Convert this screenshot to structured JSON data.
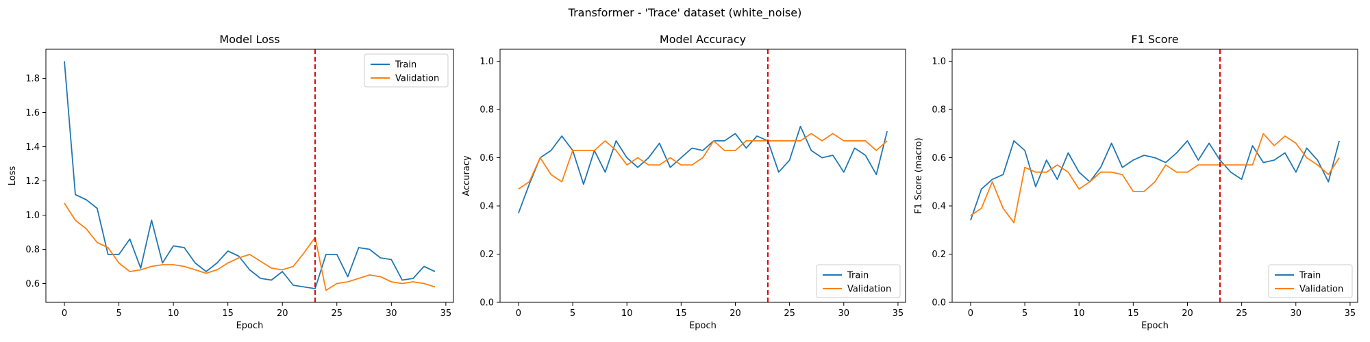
{
  "figure": {
    "title": "Transformer - 'Trace' dataset (white_noise)"
  },
  "colors": {
    "train": "#1f77b4",
    "validation": "#ff7f0e",
    "marker_line": "#e00000"
  },
  "chart_data": [
    {
      "type": "line",
      "title": "Model Loss",
      "xlabel": "Epoch",
      "ylabel": "Loss",
      "xlim": [
        -1.7,
        35.7
      ],
      "ylim": [
        0.49,
        1.97
      ],
      "xticks": [
        0,
        5,
        10,
        15,
        20,
        25,
        30,
        35
      ],
      "yticks": [
        0.6,
        0.8,
        1.0,
        1.2,
        1.4,
        1.6,
        1.8
      ],
      "ytick_decimals": 1,
      "legend": "upper right",
      "vline_x": 23,
      "x": [
        0,
        1,
        2,
        3,
        4,
        5,
        6,
        7,
        8,
        9,
        10,
        11,
        12,
        13,
        14,
        15,
        16,
        17,
        18,
        19,
        20,
        21,
        22,
        23,
        24,
        25,
        26,
        27,
        28,
        29,
        30,
        31,
        32,
        33,
        34
      ],
      "series": [
        {
          "name": "Train",
          "values": [
            1.9,
            1.12,
            1.09,
            1.04,
            0.77,
            0.77,
            0.86,
            0.69,
            0.97,
            0.72,
            0.82,
            0.81,
            0.72,
            0.67,
            0.72,
            0.79,
            0.76,
            0.68,
            0.63,
            0.62,
            0.67,
            0.59,
            0.58,
            0.57,
            0.77,
            0.77,
            0.64,
            0.81,
            0.8,
            0.75,
            0.74,
            0.62,
            0.63,
            0.7,
            0.67
          ]
        },
        {
          "name": "Validation",
          "values": [
            1.07,
            0.97,
            0.92,
            0.84,
            0.81,
            0.72,
            0.67,
            0.68,
            0.7,
            0.71,
            0.71,
            0.7,
            0.68,
            0.66,
            0.68,
            0.72,
            0.75,
            0.77,
            0.73,
            0.69,
            0.68,
            0.7,
            0.78,
            0.87,
            0.56,
            0.6,
            0.61,
            0.63,
            0.65,
            0.64,
            0.61,
            0.6,
            0.61,
            0.6,
            0.58
          ]
        }
      ]
    },
    {
      "type": "line",
      "title": "Model Accuracy",
      "xlabel": "Epoch",
      "ylabel": "Accuracy",
      "xlim": [
        -1.7,
        35.7
      ],
      "ylim": [
        0,
        1.05
      ],
      "xticks": [
        0,
        5,
        10,
        15,
        20,
        25,
        30,
        35
      ],
      "yticks": [
        0.0,
        0.2,
        0.4,
        0.6,
        0.8,
        1.0
      ],
      "ytick_decimals": 1,
      "legend": "lower right",
      "vline_x": 23,
      "x": [
        0,
        1,
        2,
        3,
        4,
        5,
        6,
        7,
        8,
        9,
        10,
        11,
        12,
        13,
        14,
        15,
        16,
        17,
        18,
        19,
        20,
        21,
        22,
        23,
        24,
        25,
        26,
        27,
        28,
        29,
        30,
        31,
        32,
        33,
        34
      ],
      "series": [
        {
          "name": "Train",
          "values": [
            0.37,
            0.49,
            0.6,
            0.63,
            0.69,
            0.63,
            0.49,
            0.63,
            0.54,
            0.67,
            0.6,
            0.56,
            0.6,
            0.66,
            0.56,
            0.6,
            0.64,
            0.63,
            0.67,
            0.67,
            0.7,
            0.64,
            0.69,
            0.67,
            0.54,
            0.59,
            0.73,
            0.63,
            0.6,
            0.61,
            0.54,
            0.64,
            0.61,
            0.53,
            0.71
          ]
        },
        {
          "name": "Validation",
          "values": [
            0.47,
            0.5,
            0.6,
            0.53,
            0.5,
            0.63,
            0.63,
            0.63,
            0.67,
            0.63,
            0.57,
            0.6,
            0.57,
            0.57,
            0.6,
            0.57,
            0.57,
            0.6,
            0.67,
            0.63,
            0.63,
            0.67,
            0.67,
            0.67,
            0.67,
            0.67,
            0.67,
            0.7,
            0.67,
            0.7,
            0.67,
            0.67,
            0.67,
            0.63,
            0.67
          ]
        }
      ]
    },
    {
      "type": "line",
      "title": "F1 Score",
      "xlabel": "Epoch",
      "ylabel": "F1 Score (macro)",
      "xlim": [
        -1.7,
        35.7
      ],
      "ylim": [
        0,
        1.05
      ],
      "xticks": [
        0,
        5,
        10,
        15,
        20,
        25,
        30,
        35
      ],
      "yticks": [
        0.0,
        0.2,
        0.4,
        0.6,
        0.8,
        1.0
      ],
      "ytick_decimals": 1,
      "legend": "lower right",
      "vline_x": 23,
      "x": [
        0,
        1,
        2,
        3,
        4,
        5,
        6,
        7,
        8,
        9,
        10,
        11,
        12,
        13,
        14,
        15,
        16,
        17,
        18,
        19,
        20,
        21,
        22,
        23,
        24,
        25,
        26,
        27,
        28,
        29,
        30,
        31,
        32,
        33,
        34
      ],
      "series": [
        {
          "name": "Train",
          "values": [
            0.34,
            0.47,
            0.51,
            0.53,
            0.67,
            0.63,
            0.48,
            0.59,
            0.51,
            0.62,
            0.54,
            0.5,
            0.56,
            0.66,
            0.56,
            0.59,
            0.61,
            0.6,
            0.58,
            0.62,
            0.67,
            0.59,
            0.66,
            0.59,
            0.54,
            0.51,
            0.65,
            0.58,
            0.59,
            0.62,
            0.54,
            0.64,
            0.59,
            0.5,
            0.67
          ]
        },
        {
          "name": "Validation",
          "values": [
            0.36,
            0.39,
            0.5,
            0.39,
            0.33,
            0.56,
            0.54,
            0.54,
            0.57,
            0.54,
            0.47,
            0.5,
            0.54,
            0.54,
            0.53,
            0.46,
            0.46,
            0.5,
            0.57,
            0.54,
            0.54,
            0.57,
            0.57,
            0.57,
            0.57,
            0.57,
            0.57,
            0.7,
            0.65,
            0.69,
            0.66,
            0.6,
            0.57,
            0.53,
            0.6
          ]
        }
      ]
    }
  ]
}
